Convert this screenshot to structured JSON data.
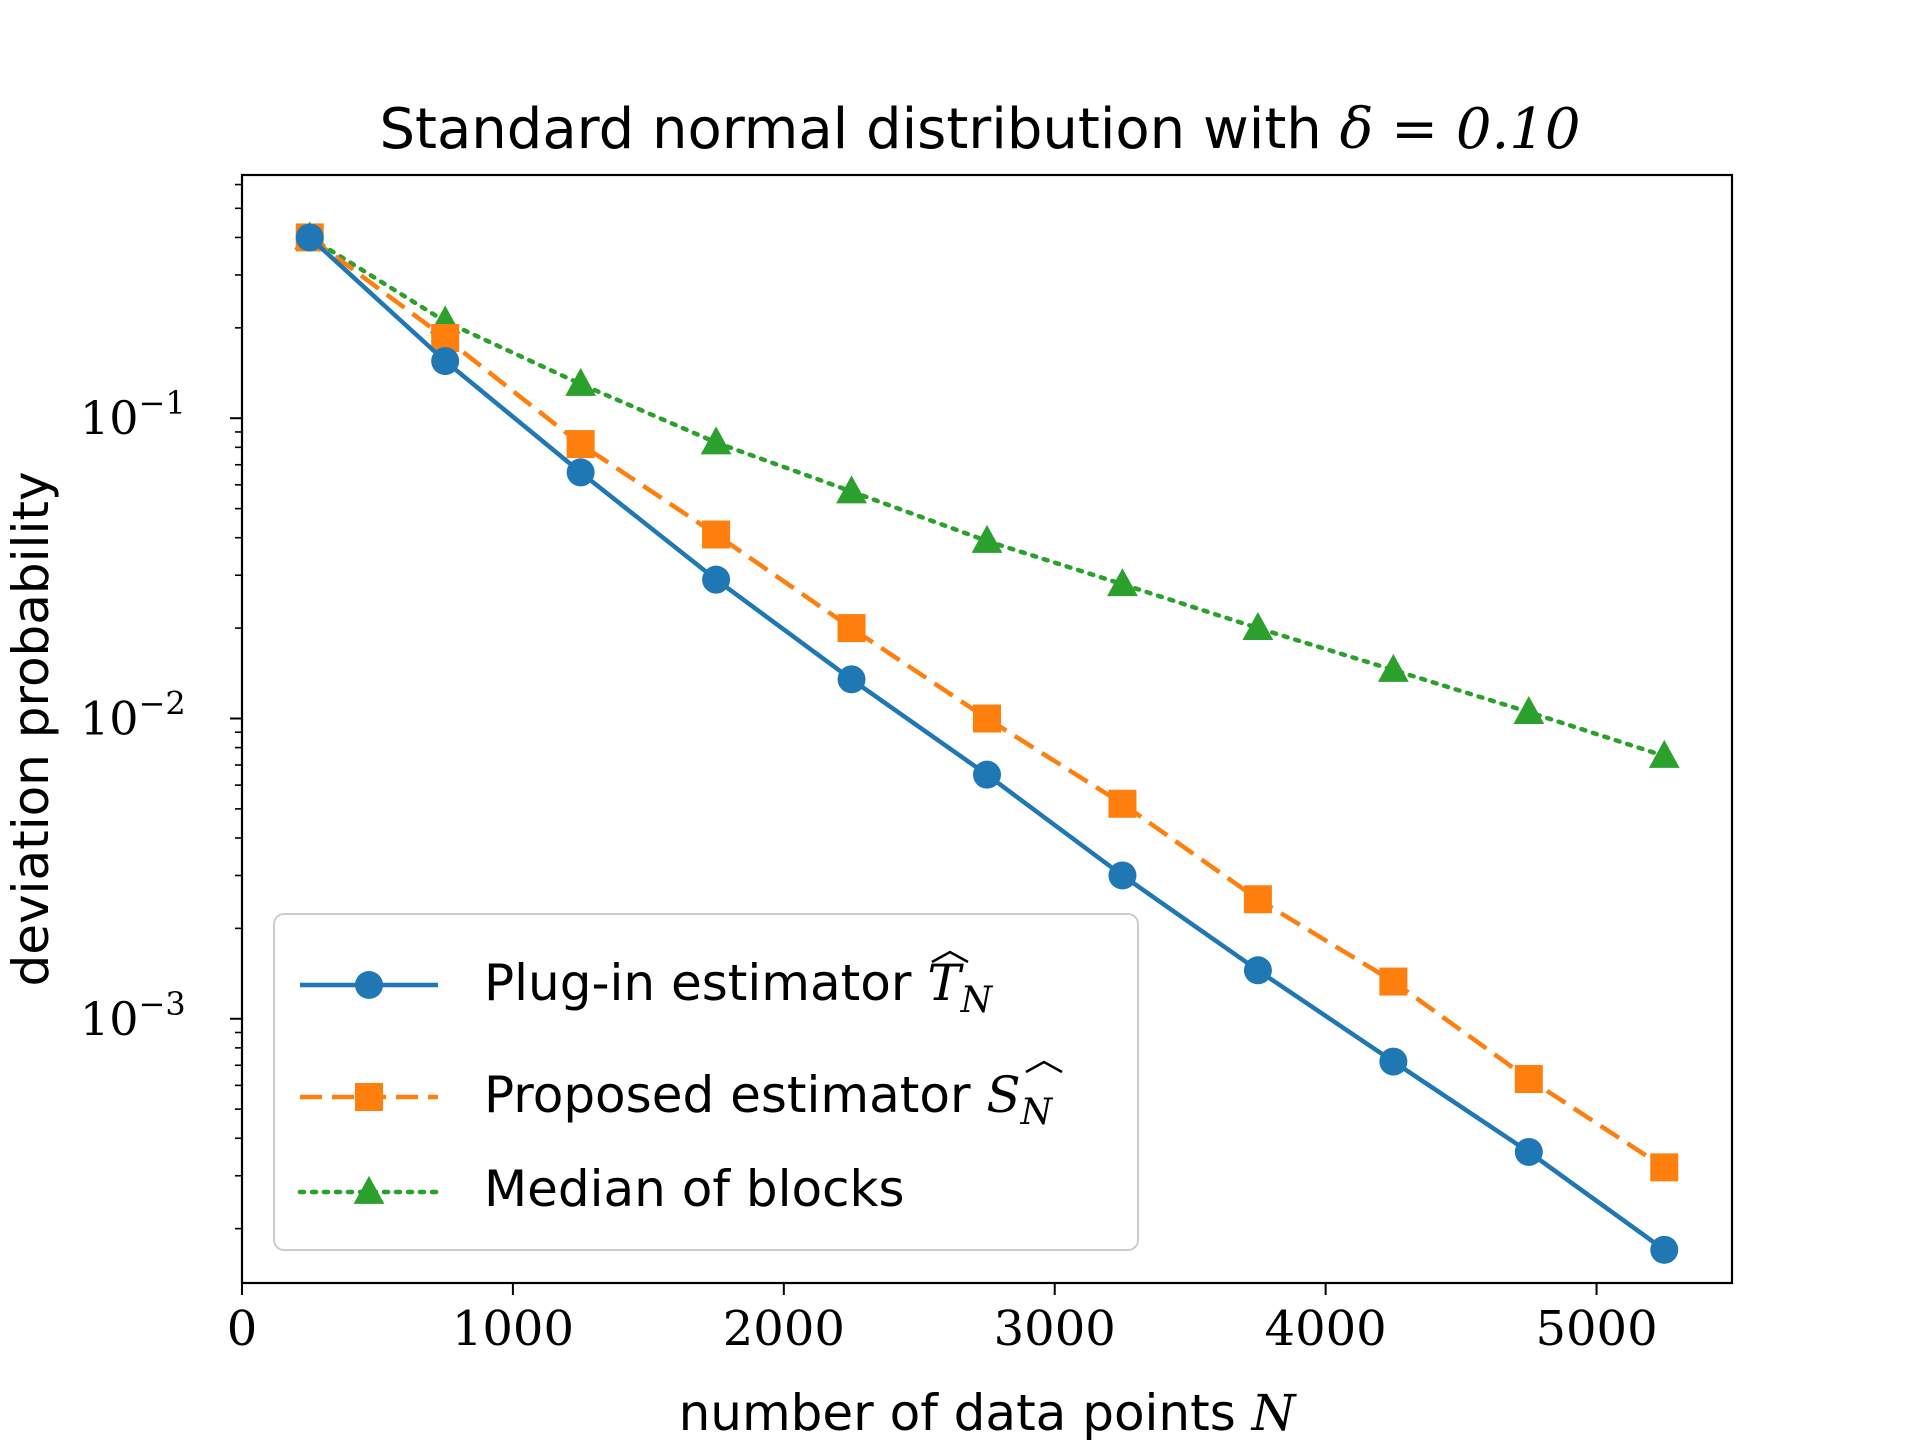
{
  "chart_data": {
    "type": "line",
    "title": "Standard normal distribution with",
    "title_math": "δ = 0.10",
    "xlabel": "number of data points",
    "xlabel_math": "N",
    "ylabel": "deviation probability",
    "x": [
      250,
      750,
      1250,
      1750,
      2250,
      2750,
      3250,
      3750,
      4250,
      4750,
      5250
    ],
    "xlim": [
      0,
      5500
    ],
    "ylim_log10": [
      -3.88,
      -0.19
    ],
    "x_ticks": [
      0,
      1000,
      2000,
      3000,
      4000,
      5000
    ],
    "x_tick_labels": [
      "0",
      "1000",
      "2000",
      "3000",
      "4000",
      "5000"
    ],
    "y_ticks_exp": [
      -1,
      -2,
      -3
    ],
    "y_tick_base": "10",
    "y_tick_exp_labels": [
      "−1",
      "−2",
      "−3"
    ],
    "grid": false,
    "legend_position": "lower-left",
    "series": [
      {
        "name": "Plug-in estimator",
        "name_math_main": "T",
        "name_math_sub": "N",
        "color": "#1f77b4",
        "marker": "circle",
        "linestyle": "solid",
        "values": [
          0.4,
          0.155,
          0.066,
          0.029,
          0.0135,
          0.0065,
          0.003,
          0.00145,
          0.00072,
          0.00036,
          0.00017
        ]
      },
      {
        "name": "Proposed estimator",
        "name_math_main": "S",
        "name_math_sub": "N",
        "color": "#ff7f0e",
        "marker": "square",
        "linestyle": "dashed",
        "values": [
          0.4,
          0.185,
          0.082,
          0.041,
          0.02,
          0.01,
          0.0052,
          0.0025,
          0.00133,
          0.00063,
          0.00032
        ]
      },
      {
        "name": "Median of blocks",
        "name_math_main": "",
        "name_math_sub": "",
        "color": "#2ca02c",
        "marker": "triangle",
        "linestyle": "dotted",
        "values": [
          0.4,
          0.21,
          0.13,
          0.083,
          0.057,
          0.039,
          0.028,
          0.02,
          0.0145,
          0.0105,
          0.0075
        ]
      }
    ]
  }
}
